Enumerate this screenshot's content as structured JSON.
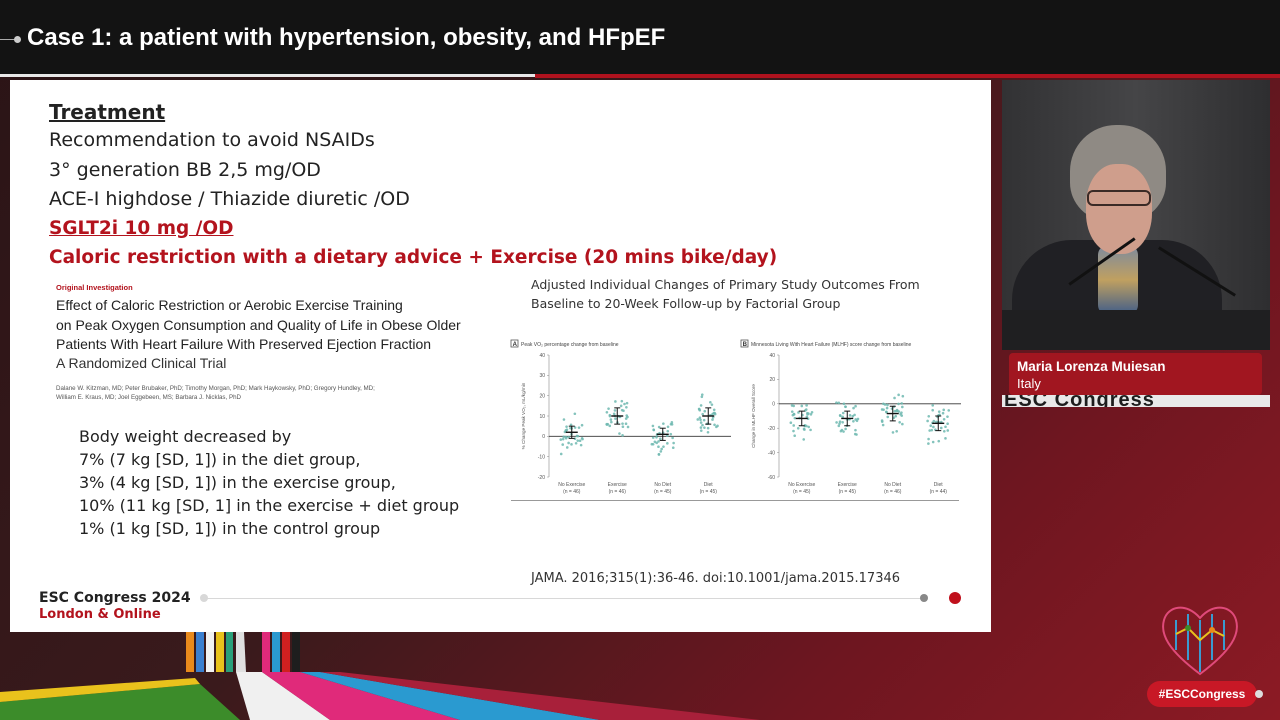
{
  "session": {
    "title": "Case 1: a patient with hypertension, obesity, and HFpEF"
  },
  "slide": {
    "treatment_heading": "Treatment",
    "lines": [
      "Recommendation to avoid NSAIDs",
      "3° generation BB 2,5 mg/OD",
      "ACE-I highdose / Thiazide diuretic /OD"
    ],
    "sglt2": "SGLT2i  10 mg /OD",
    "caloric": "Caloric restriction with a dietary advice +  Exercise  (20 mins bike/day)",
    "article": {
      "tag": "Original Investigation",
      "title_lines": [
        "Effect of Caloric Restriction or Aerobic Exercise Training",
        "on Peak Oxygen Consumption and Quality of Life in Obese Older",
        "Patients With Heart Failure With Preserved Ejection Fraction"
      ],
      "subtitle": "A Randomized Clinical Trial",
      "authors_lines": [
        "Dalane W. Kitzman, MD; Peter Brubaker, PhD; Timothy Morgan, PhD; Mark Haykowsky, PhD; Gregory Hundley, MD;",
        "William E. Kraus, MD; Joel Eggebeen, MS; Barbara J. Nicklas, PhD"
      ]
    },
    "body_weight": [
      "Body weight decreased by",
      "7% (7 kg [SD, 1]) in the diet group,",
      "3% (4 kg [SD, 1]) in the exercise group,",
      "10% (11 kg [SD, 1] in the exercise + diet group",
      "1% (1 kg [SD, 1]) in the control group"
    ],
    "figure": {
      "title_lines": [
        "Adjusted Individual Changes of Primary Study Outcomes From",
        "Baseline to 20-Week Follow-up by Factorial Group"
      ]
    },
    "citation": "JAMA. 2016;315(1):36-46. doi:10.1001/jama.2015.17346",
    "footer": {
      "brand": "ESC Congress 2024",
      "location": "London & Online"
    }
  },
  "chart_data": [
    {
      "type": "scatter",
      "panel_letter": "A",
      "title": "Peak VO₂ percentage change from baseline",
      "ylabel": "% Change Peak VO₂, mL/kg/min",
      "ylim": [
        -20,
        40
      ],
      "yticks": [
        -20,
        -10,
        0,
        10,
        20,
        30,
        40
      ],
      "categories": [
        "No Exercise",
        "Exercise",
        "No Diet",
        "Diet"
      ],
      "category_n": [
        "(n = 46)",
        "(n = 46)",
        "(n = 45)",
        "(n = 45)"
      ],
      "means": [
        2,
        10,
        1,
        10
      ],
      "ci": [
        [
          -1,
          5
        ],
        [
          6,
          14
        ],
        [
          -2,
          4
        ],
        [
          6,
          14
        ]
      ]
    },
    {
      "type": "scatter",
      "panel_letter": "B",
      "title": "Minnesota Living With Heart Failure (MLHF) score change from baseline",
      "ylabel": "Change in MLHF Overall Score",
      "ylim": [
        -60,
        40
      ],
      "yticks": [
        -60,
        -40,
        -20,
        0,
        20,
        40
      ],
      "categories": [
        "No Exercise",
        "Exercise",
        "No Diet",
        "Diet"
      ],
      "category_n": [
        "(n = 45)",
        "(n = 45)",
        "(n = 46)",
        "(n = 44)"
      ],
      "means": [
        -12,
        -12,
        -8,
        -16
      ],
      "ci": [
        [
          -18,
          -6
        ],
        [
          -18,
          -6
        ],
        [
          -14,
          -2
        ],
        [
          -22,
          -10
        ]
      ]
    }
  ],
  "speaker": {
    "name": "Maria Lorenza Muiesan",
    "country": "Italy"
  },
  "congress_strip": "ESC Congress",
  "hashtag": "#ESCCongress",
  "colors": {
    "accent_red": "#b3131d",
    "dot_teal": "#6fb8b0",
    "banner": "#131313"
  }
}
